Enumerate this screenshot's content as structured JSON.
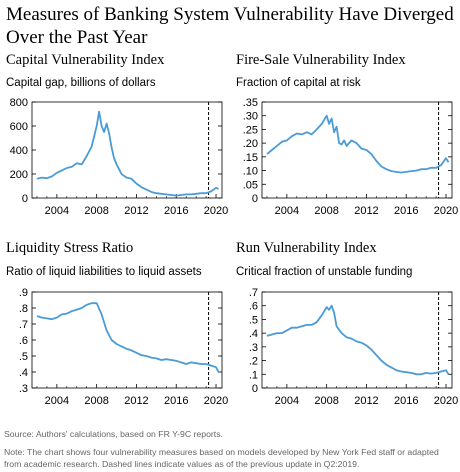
{
  "title": "Measures of Banking System Vulnerability Have Diverged Over the Past Year",
  "source": "Source: Authors' calculations, based on FR Y-9C reports.",
  "note": "Note: The chart shows four vulnerability measures based on models developed by New York Fed staff or adapted from academic research. Dashed lines indicate values as of the previous update in Q2:2019.",
  "colors": {
    "line": "#4a9bd6",
    "dashed": "#000000"
  },
  "chart_data": [
    {
      "type": "line",
      "title": "Capital Vulnerability Index",
      "subtitle": "Capital gap, billions of dollars",
      "xlim": [
        2001.5,
        2020.6
      ],
      "xticks": [
        2004,
        2008,
        2012,
        2016,
        2020
      ],
      "ylim": [
        0,
        800
      ],
      "yticks": [
        0,
        200,
        400,
        600,
        800
      ],
      "ytick_labels": [
        "0",
        "200",
        "400",
        "600",
        "800"
      ],
      "vline": 2019.25,
      "x": [
        2002,
        2002.5,
        2003,
        2003.5,
        2004,
        2004.5,
        2005,
        2005.5,
        2006,
        2006.5,
        2007,
        2007.5,
        2008,
        2008.25,
        2008.5,
        2008.75,
        2009,
        2009.25,
        2009.5,
        2009.75,
        2010,
        2010.5,
        2011,
        2011.5,
        2012,
        2012.5,
        2013,
        2013.5,
        2014,
        2014.5,
        2015,
        2015.5,
        2016,
        2016.5,
        2017,
        2017.5,
        2018,
        2018.5,
        2019,
        2019.5,
        2020,
        2020.25
      ],
      "y": [
        160,
        170,
        165,
        180,
        210,
        230,
        250,
        260,
        290,
        280,
        350,
        430,
        600,
        720,
        600,
        550,
        620,
        540,
        420,
        330,
        280,
        200,
        170,
        160,
        120,
        90,
        70,
        50,
        40,
        35,
        30,
        25,
        20,
        25,
        30,
        30,
        35,
        40,
        40,
        55,
        85,
        75
      ]
    },
    {
      "type": "line",
      "title": "Fire-Sale Vulnerability Index",
      "subtitle": "Fraction of capital at risk",
      "xlim": [
        2001.5,
        2020.6
      ],
      "xticks": [
        2004,
        2008,
        2012,
        2016,
        2020
      ],
      "ylim": [
        0,
        0.35
      ],
      "yticks": [
        0,
        0.05,
        0.1,
        0.15,
        0.2,
        0.25,
        0.3,
        0.35
      ],
      "ytick_labels": [
        "0",
        ".05",
        ".10",
        ".15",
        ".20",
        ".25",
        ".30",
        ".35"
      ],
      "vline": 2019.25,
      "x": [
        2002,
        2002.5,
        2003,
        2003.5,
        2004,
        2004.5,
        2005,
        2005.5,
        2006,
        2006.5,
        2007,
        2007.5,
        2008,
        2008.25,
        2008.5,
        2008.75,
        2009,
        2009.25,
        2009.5,
        2009.75,
        2010,
        2010.5,
        2011,
        2011.5,
        2012,
        2012.5,
        2013,
        2013.5,
        2014,
        2014.5,
        2015,
        2015.5,
        2016,
        2016.5,
        2017,
        2017.5,
        2018,
        2018.5,
        2019,
        2019.5,
        2020,
        2020.25
      ],
      "y": [
        0.16,
        0.175,
        0.19,
        0.205,
        0.21,
        0.225,
        0.235,
        0.232,
        0.24,
        0.232,
        0.25,
        0.27,
        0.3,
        0.27,
        0.29,
        0.24,
        0.26,
        0.2,
        0.195,
        0.21,
        0.19,
        0.21,
        0.2,
        0.18,
        0.175,
        0.16,
        0.135,
        0.115,
        0.105,
        0.098,
        0.095,
        0.093,
        0.095,
        0.098,
        0.1,
        0.105,
        0.105,
        0.11,
        0.11,
        0.12,
        0.145,
        0.13
      ]
    },
    {
      "type": "line",
      "title": "Liquidity Stress Ratio",
      "subtitle": "Ratio of liquid liabilities to liquid assets",
      "xlim": [
        2001.5,
        2020.6
      ],
      "xticks": [
        2004,
        2008,
        2012,
        2016,
        2020
      ],
      "ylim": [
        0.3,
        0.9
      ],
      "yticks": [
        0.3,
        0.4,
        0.5,
        0.6,
        0.7,
        0.8,
        0.9
      ],
      "ytick_labels": [
        ".3",
        ".4",
        ".5",
        ".6",
        ".7",
        ".8",
        ".9"
      ],
      "vline": 2019.25,
      "x": [
        2002,
        2002.5,
        2003,
        2003.5,
        2004,
        2004.5,
        2005,
        2005.5,
        2006,
        2006.5,
        2007,
        2007.5,
        2008,
        2008.5,
        2009,
        2009.5,
        2010,
        2010.5,
        2011,
        2011.5,
        2012,
        2012.5,
        2013,
        2013.5,
        2014,
        2014.5,
        2015,
        2015.5,
        2016,
        2016.5,
        2017,
        2017.5,
        2018,
        2018.5,
        2019,
        2019.5,
        2020,
        2020.25
      ],
      "y": [
        0.75,
        0.74,
        0.735,
        0.73,
        0.74,
        0.76,
        0.765,
        0.78,
        0.79,
        0.8,
        0.82,
        0.83,
        0.83,
        0.76,
        0.66,
        0.6,
        0.575,
        0.56,
        0.545,
        0.535,
        0.52,
        0.505,
        0.5,
        0.49,
        0.485,
        0.475,
        0.48,
        0.475,
        0.47,
        0.46,
        0.45,
        0.46,
        0.455,
        0.45,
        0.45,
        0.44,
        0.43,
        0.4
      ]
    },
    {
      "type": "line",
      "title": "Run Vulnerability Index",
      "subtitle": "Critical fraction of unstable funding",
      "xlim": [
        2001.5,
        2020.6
      ],
      "xticks": [
        2004,
        2008,
        2012,
        2016,
        2020
      ],
      "ylim": [
        0,
        0.7
      ],
      "yticks": [
        0,
        0.1,
        0.2,
        0.3,
        0.4,
        0.5,
        0.6,
        0.7
      ],
      "ytick_labels": [
        "0",
        ".1",
        ".2",
        ".3",
        ".4",
        ".5",
        ".6",
        ".7"
      ],
      "vline": 2019.25,
      "x": [
        2002,
        2002.5,
        2003,
        2003.5,
        2004,
        2004.5,
        2005,
        2005.5,
        2006,
        2006.5,
        2007,
        2007.5,
        2008,
        2008.25,
        2008.5,
        2008.75,
        2009,
        2009.5,
        2010,
        2010.5,
        2011,
        2011.5,
        2012,
        2012.5,
        2013,
        2013.5,
        2014,
        2014.5,
        2015,
        2015.5,
        2016,
        2016.5,
        2017,
        2017.5,
        2018,
        2018.5,
        2019,
        2019.5,
        2020,
        2020.25
      ],
      "y": [
        0.38,
        0.39,
        0.4,
        0.4,
        0.42,
        0.44,
        0.44,
        0.45,
        0.46,
        0.46,
        0.48,
        0.53,
        0.59,
        0.57,
        0.6,
        0.55,
        0.45,
        0.4,
        0.37,
        0.36,
        0.34,
        0.33,
        0.31,
        0.28,
        0.24,
        0.2,
        0.17,
        0.15,
        0.13,
        0.12,
        0.115,
        0.11,
        0.1,
        0.1,
        0.11,
        0.105,
        0.11,
        0.12,
        0.13,
        0.1
      ]
    }
  ]
}
